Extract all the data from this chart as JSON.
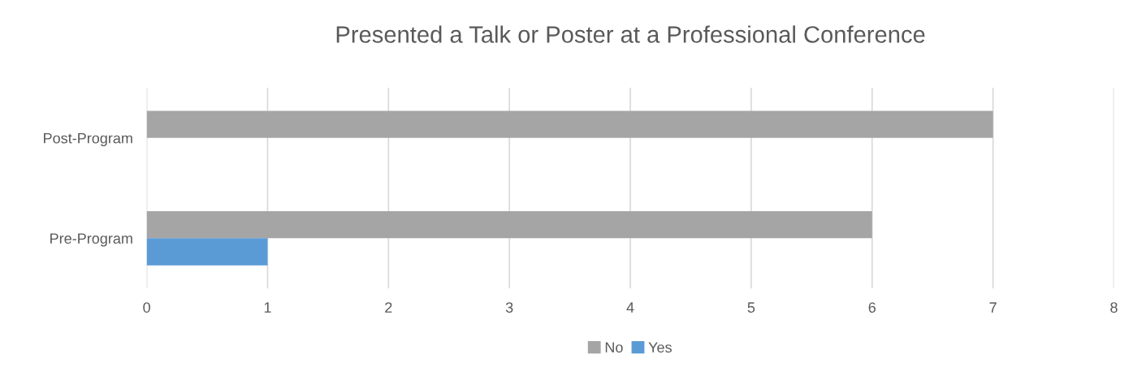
{
  "chart_data": {
    "type": "bar",
    "orientation": "horizontal",
    "title": "Presented a Talk or Poster at a Professional Conference",
    "categories": [
      "Post-Program",
      "Pre-Program"
    ],
    "series": [
      {
        "name": "No",
        "color": "#a5a5a5",
        "values": [
          7,
          6
        ]
      },
      {
        "name": "Yes",
        "color": "#5b9bd5",
        "values": [
          0,
          1
        ]
      }
    ],
    "xlim": [
      0,
      8
    ],
    "xticks": [
      0,
      1,
      2,
      3,
      4,
      5,
      6,
      7,
      8
    ],
    "grid": "x",
    "legend": "bottom"
  }
}
